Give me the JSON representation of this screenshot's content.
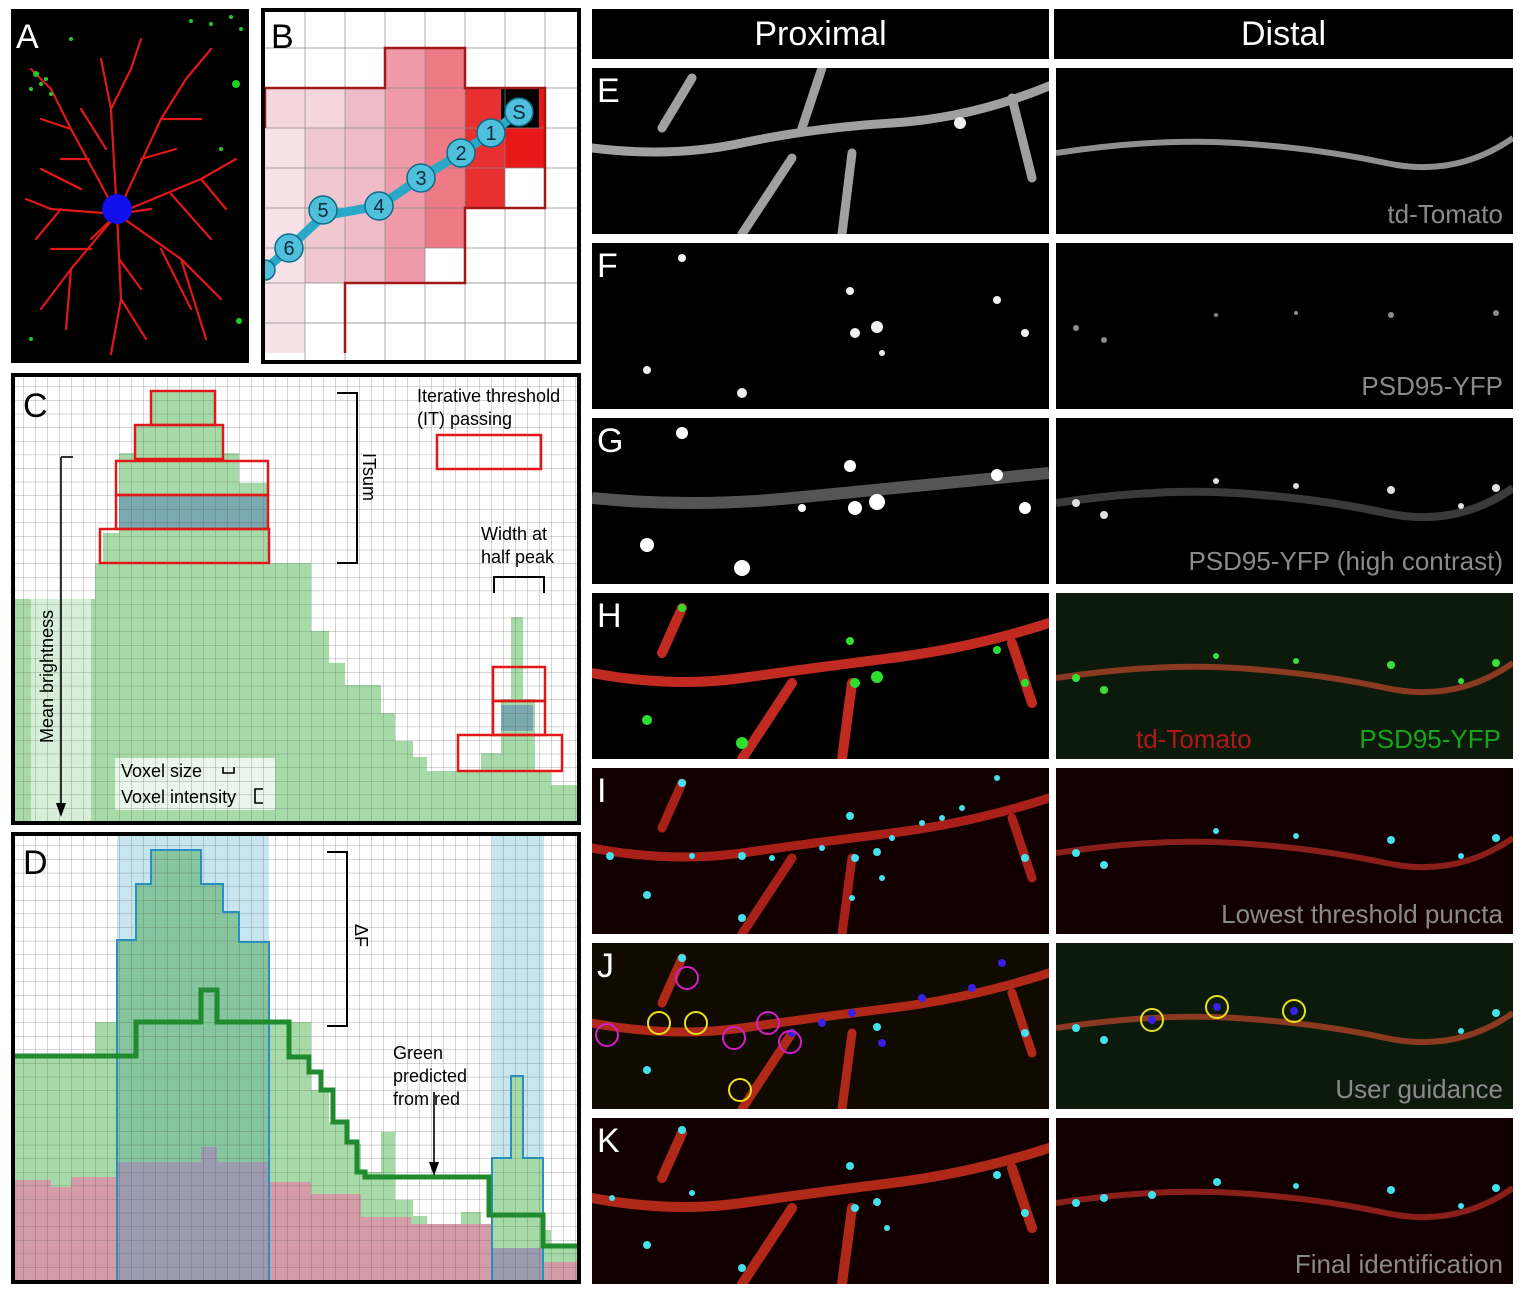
{
  "panel_labels": {
    "a": "A",
    "b": "B",
    "c": "C",
    "d": "D",
    "e": "E",
    "f": "F",
    "g": "G",
    "h": "H",
    "i": "I",
    "j": "J",
    "k": "K"
  },
  "columns": {
    "proximal": "Proximal",
    "distal": "Distal"
  },
  "panel_b": {
    "seed_label": "S",
    "path_steps": [
      "1",
      "2",
      "3",
      "4",
      "5",
      "6"
    ]
  },
  "panel_c": {
    "legend_title_line1": "Iterative threshold",
    "legend_title_line2": "(IT) passing",
    "itsum_label": "ITsum",
    "width_label_line1": "Width at",
    "width_label_line2": "half peak",
    "mean_brightness_label": "Mean brightness",
    "voxel_size_label": "Voxel size",
    "voxel_intensity_label": "Voxel intensity"
  },
  "panel_d": {
    "delta_f_label": "ΔF",
    "green_pred_line1": "Green",
    "green_pred_line2": "predicted",
    "green_pred_line3": "from red"
  },
  "micro_labels": {
    "e": "td-Tomato",
    "f": "PSD95-YFP",
    "g": "PSD95-YFP (high contrast)",
    "h_red": "td-Tomato",
    "h_green": "PSD95-YFP",
    "i": "Lowest threshold puncta",
    "j": "User guidance",
    "k": "Final identification"
  },
  "colors": {
    "red": "#e01818",
    "green": "#1aa31a",
    "cyan": "#3cd8e8",
    "magenta": "#d020c8",
    "yellow": "#e8e020",
    "gray_label": "#8a8a8a"
  }
}
